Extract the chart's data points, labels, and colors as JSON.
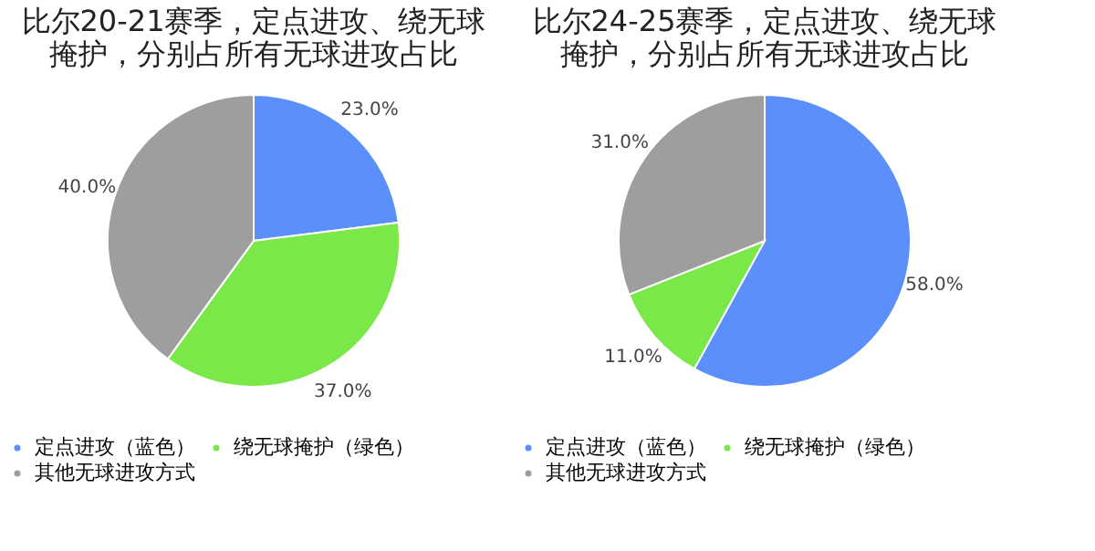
{
  "chart_data": [
    {
      "type": "pie",
      "title": "比尔20-21赛季，定点进攻、绕无球掩护，分别占所有无球进攻占比",
      "categories": [
        "定点进攻（蓝色）",
        "绕无球掩护（绿色）",
        "其他无球进攻方式"
      ],
      "values": [
        23.0,
        37.0,
        40.0
      ],
      "colors": [
        "#5b8ff9",
        "#7be84a",
        "#9e9e9e"
      ],
      "value_labels": [
        "23.0%",
        "37.0%",
        "40.0%"
      ],
      "legend": "bottom"
    },
    {
      "type": "pie",
      "title": "比尔24-25赛季，定点进攻、绕无球掩护，分别占所有无球进攻占比",
      "categories": [
        "定点进攻（蓝色）",
        "绕无球掩护（绿色）",
        "其他无球进攻方式"
      ],
      "values": [
        58.0,
        11.0,
        31.0
      ],
      "colors": [
        "#5b8ff9",
        "#7be84a",
        "#9e9e9e"
      ],
      "value_labels": [
        "58.0%",
        "11.0%",
        "31.0%"
      ],
      "legend": "bottom"
    }
  ]
}
